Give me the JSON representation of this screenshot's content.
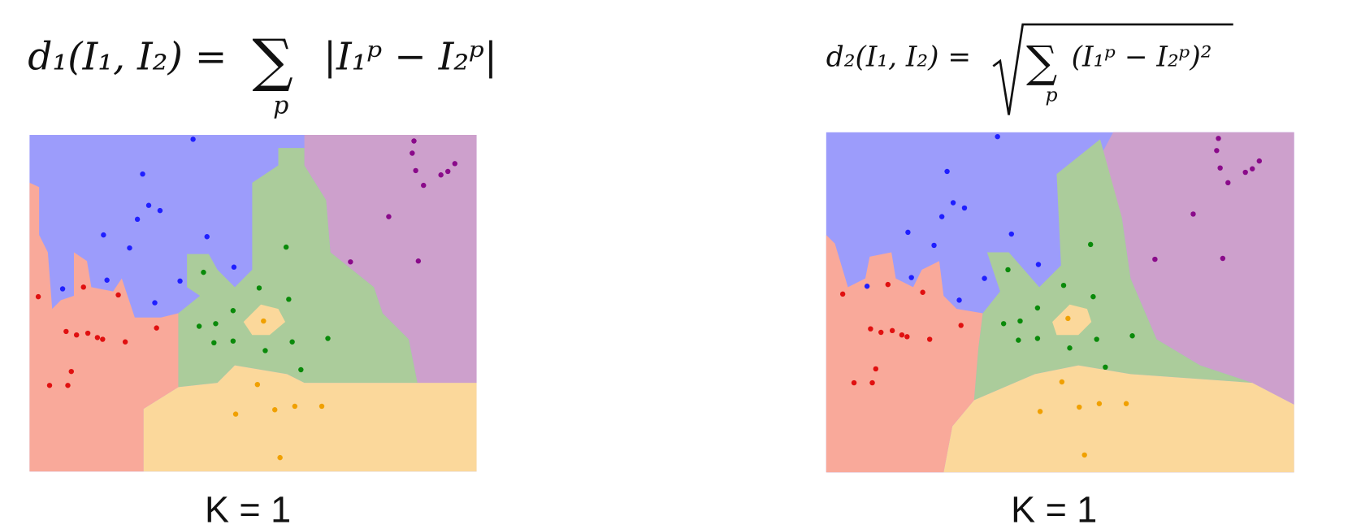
{
  "panels": [
    {
      "formula": {
        "lhs": "d₁(I₁, I₂) =",
        "operator": "∑",
        "index": "p",
        "body": "|I₁ᵖ − I₂ᵖ|"
      },
      "caption": "K = 1"
    },
    {
      "formula": {
        "lhs": "d₂(I₁, I₂) =",
        "operator": "∑",
        "index": "p",
        "body": "(I₁ᵖ − I₂ᵖ)²"
      },
      "caption": "K = 1"
    }
  ]
}
